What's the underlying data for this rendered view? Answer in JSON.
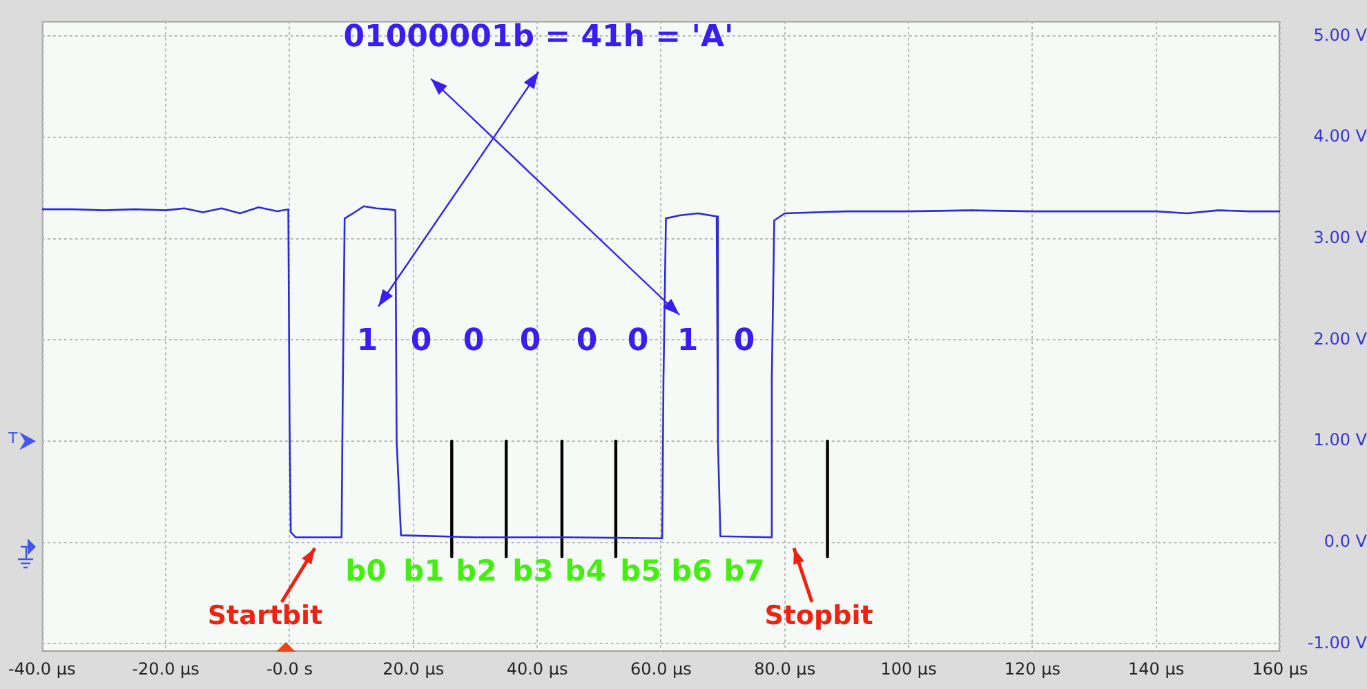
{
  "chart_data": {
    "type": "line",
    "xlim": [
      -40,
      160
    ],
    "xticks": [
      {
        "value": -40,
        "label": "-40.0 µs"
      },
      {
        "value": -20,
        "label": "-20.0 µs"
      },
      {
        "value": 0,
        "label": "-0.0 s"
      },
      {
        "value": 20,
        "label": "20.0 µs"
      },
      {
        "value": 40,
        "label": "40.0 µs"
      },
      {
        "value": 60,
        "label": "60.0 µs"
      },
      {
        "value": 80,
        "label": "80.0 µs"
      },
      {
        "value": 100,
        "label": "100 µs"
      },
      {
        "value": 120,
        "label": "120 µs"
      },
      {
        "value": 140,
        "label": "140 µs"
      },
      {
        "value": 160,
        "label": "160 µs"
      }
    ],
    "ylim": [
      -1.08,
      5.15
    ],
    "yticks": [
      {
        "value": -1,
        "label": "-1.00 V"
      },
      {
        "value": 0,
        "label": "0.0 V"
      },
      {
        "value": 1,
        "label": "1.00 V"
      },
      {
        "value": 2,
        "label": "2.00 V"
      },
      {
        "value": 3,
        "label": "3.00 V"
      },
      {
        "value": 4,
        "label": "4.00 V"
      },
      {
        "value": 5,
        "label": "5.00 V"
      }
    ],
    "grid": true,
    "series": [
      {
        "color": "#2b2bd9",
        "x": [
          -40,
          -35,
          -30,
          -25,
          -20,
          -17,
          -14,
          -11,
          -8,
          -5,
          -2,
          -0.2,
          0,
          0.2,
          1.0,
          8.4,
          8.6,
          8.9,
          10,
          12,
          14,
          16,
          17.1,
          17.3,
          18,
          30,
          45,
          60.2,
          60.4,
          60.8,
          63,
          66,
          69.0,
          69.2,
          69.6,
          77.7,
          77.9,
          78.3,
          80,
          90,
          100,
          110,
          120,
          130,
          140,
          145,
          150,
          155,
          160
        ],
        "values": [
          3.29,
          3.29,
          3.28,
          3.29,
          3.28,
          3.3,
          3.26,
          3.3,
          3.25,
          3.31,
          3.27,
          3.29,
          1.2,
          0.1,
          0.05,
          0.05,
          1.5,
          3.2,
          3.24,
          3.32,
          3.3,
          3.29,
          3.28,
          1.0,
          0.07,
          0.05,
          0.05,
          0.04,
          1.6,
          3.2,
          3.23,
          3.25,
          3.22,
          1.0,
          0.06,
          0.05,
          1.6,
          3.18,
          3.25,
          3.27,
          3.27,
          3.28,
          3.27,
          3.27,
          3.27,
          3.25,
          3.28,
          3.27,
          3.27
        ]
      },
      {
        "color": "#000000",
        "x": [
          26.2,
          26.2
        ],
        "values": [
          1.0,
          -0.14
        ]
      },
      {
        "color": "#000000",
        "x": [
          35.0,
          35.0
        ],
        "values": [
          1.0,
          -0.14
        ]
      },
      {
        "color": "#000000",
        "x": [
          44.0,
          44.0
        ],
        "values": [
          1.0,
          -0.14
        ]
      },
      {
        "color": "#000000",
        "x": [
          52.7,
          52.7
        ],
        "values": [
          1.0,
          -0.14
        ]
      },
      {
        "color": "#000000",
        "x": [
          86.9,
          86.9
        ],
        "values": [
          1.0,
          -0.14
        ]
      }
    ],
    "annotations": [
      "01000001b = 41h = 'A'",
      "1",
      "0",
      "0",
      "0",
      "0",
      "0",
      "1",
      "0",
      "b0",
      "b1",
      "b2",
      "b3",
      "b4",
      "b5",
      "b6",
      "b7",
      "Startbit",
      "Stopbit",
      "T"
    ]
  }
}
